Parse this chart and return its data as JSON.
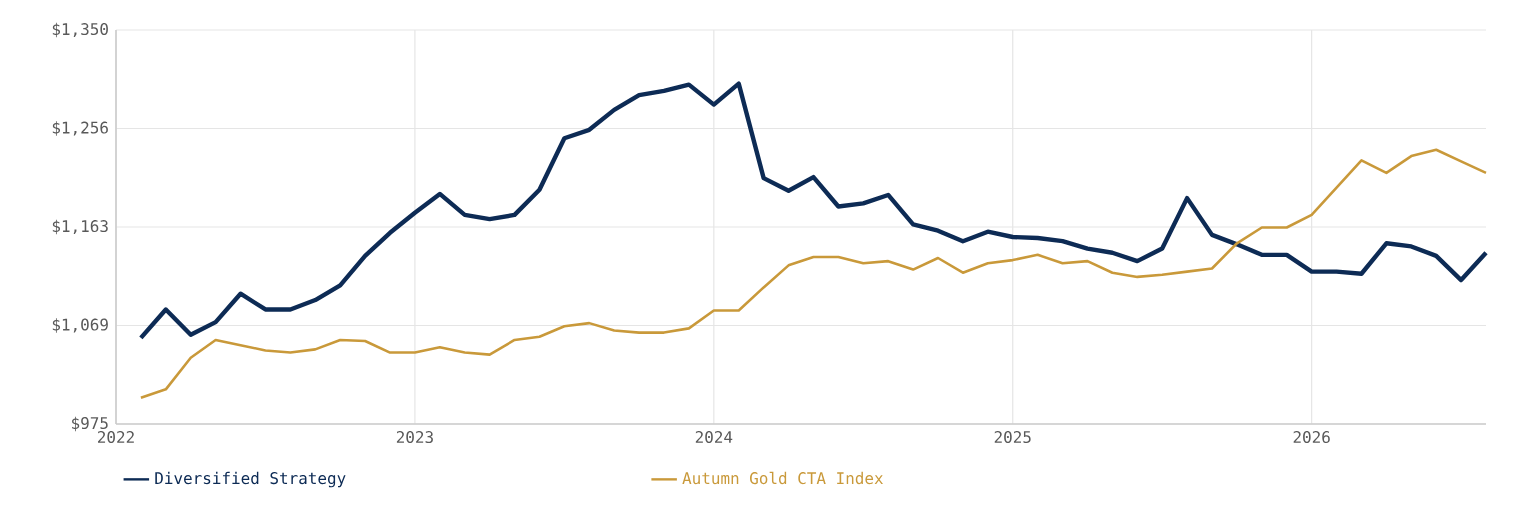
{
  "chart_data": {
    "type": "line",
    "x": [
      "2022-02",
      "2022-03",
      "2022-04",
      "2022-05",
      "2022-06",
      "2022-07",
      "2022-08",
      "2022-09",
      "2022-10",
      "2022-11",
      "2022-12",
      "2023-01",
      "2023-02",
      "2023-03",
      "2023-04",
      "2023-05",
      "2023-06",
      "2023-07",
      "2023-08",
      "2023-09",
      "2023-10",
      "2023-11",
      "2023-12",
      "2024-01",
      "2024-02",
      "2024-03",
      "2024-04",
      "2024-05",
      "2024-06",
      "2024-07",
      "2024-08",
      "2024-09",
      "2024-10",
      "2024-11",
      "2024-12",
      "2025-01",
      "2025-02",
      "2025-03",
      "2025-04",
      "2025-05",
      "2025-06",
      "2025-07",
      "2025-08",
      "2025-09",
      "2025-10",
      "2025-11",
      "2025-12",
      "2026-01",
      "2026-02",
      "2026-03",
      "2026-04",
      "2026-05",
      "2026-06",
      "2026-07",
      "2026-08"
    ],
    "series": [
      {
        "name": "Diversified Strategy",
        "color": "#0d2b55",
        "values": [
          1057,
          1084,
          1060,
          1072,
          1099,
          1084,
          1084,
          1093,
          1107,
          1135,
          1157,
          1176,
          1194,
          1174,
          1170,
          1174,
          1198,
          1247,
          1255,
          1274,
          1288,
          1292,
          1298,
          1279,
          1299,
          1209,
          1197,
          1210,
          1182,
          1185,
          1193,
          1165,
          1159,
          1149,
          1158,
          1153,
          1152,
          1149,
          1142,
          1138,
          1130,
          1142,
          1190,
          1155,
          1146,
          1136,
          1136,
          1120,
          1120,
          1118,
          1147,
          1144,
          1135,
          1112,
          1138
        ]
      },
      {
        "name": "Autumn Gold CTA Index",
        "color": "#c9993a",
        "values": [
          1000,
          1008,
          1038,
          1055,
          1050,
          1045,
          1043,
          1046,
          1055,
          1054,
          1043,
          1043,
          1048,
          1043,
          1041,
          1055,
          1058,
          1068,
          1071,
          1064,
          1062,
          1062,
          1066,
          1083,
          1083,
          1105,
          1126,
          1134,
          1134,
          1128,
          1130,
          1122,
          1133,
          1119,
          1128,
          1131,
          1136,
          1128,
          1130,
          1119,
          1115,
          1117,
          1120,
          1123,
          1147,
          1162,
          1162,
          1174,
          1200,
          1226,
          1214,
          1230,
          1236,
          1225,
          1214
        ]
      }
    ],
    "xlim": [
      "2022",
      "2026-08"
    ],
    "xticks": [
      "2022",
      "2023",
      "2024",
      "2025",
      "2026"
    ],
    "ylim": [
      975,
      1350
    ],
    "yticks": [
      {
        "value": 975,
        "label": "$975"
      },
      {
        "value": 1068.75,
        "label": "$1,069"
      },
      {
        "value": 1162.5,
        "label": "$1,163"
      },
      {
        "value": 1256.25,
        "label": "$1,256"
      },
      {
        "value": 1350,
        "label": "$1,350"
      }
    ],
    "grid": true,
    "legend": "bottom",
    "marker": "none",
    "line_style": "solid"
  }
}
